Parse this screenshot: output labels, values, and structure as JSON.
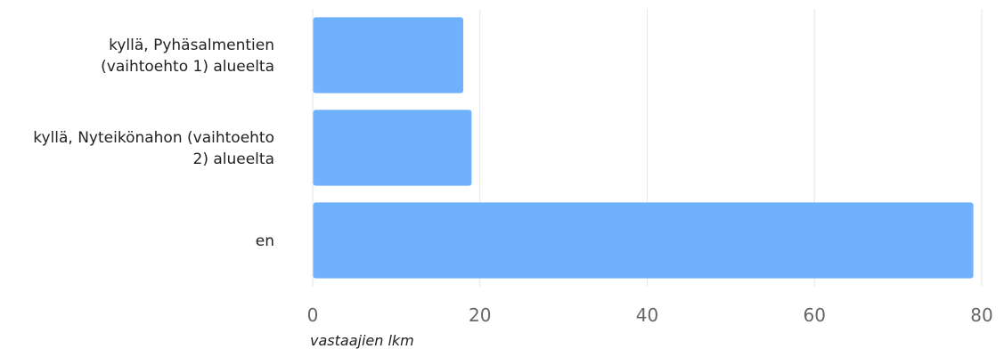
{
  "chart_data": {
    "type": "bar",
    "orientation": "horizontal",
    "categories": [
      [
        "kyllä, Pyhäsalmentien",
        "(vaihtoehto 1) alueelta"
      ],
      [
        "kyllä, Nyteikönahon (vaihtoehto",
        "2) alueelta"
      ],
      [
        "en"
      ]
    ],
    "values": [
      18,
      19,
      79
    ],
    "xlabel": "vastaajien lkm",
    "xlim": [
      0,
      80
    ],
    "xticks": [
      0,
      20,
      40,
      60,
      80
    ],
    "grid": true,
    "bar_color": "#6fb1fc"
  }
}
